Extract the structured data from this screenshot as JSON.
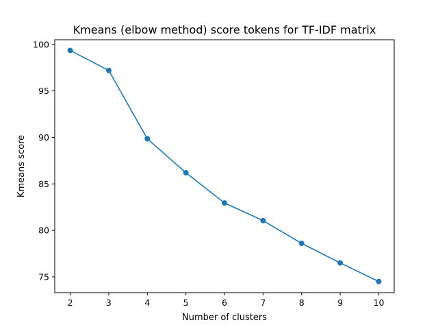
{
  "chart_data": {
    "type": "line",
    "title": "Kmeans (elbow method) score tokens for TF-IDF matrix",
    "xlabel": "Number of clusters",
    "ylabel": "Kmeans score",
    "x": [
      2,
      3,
      4,
      5,
      6,
      7,
      8,
      9,
      10
    ],
    "series": [
      {
        "values": [
          99.35,
          97.2,
          89.85,
          86.2,
          82.95,
          81.05,
          78.6,
          76.5,
          74.5
        ],
        "color": "#1f77b4",
        "marker": "circle"
      }
    ],
    "xlim": [
      1.6,
      10.4
    ],
    "ylim": [
      73.3,
      100.5
    ],
    "xticks": [
      2,
      3,
      4,
      5,
      6,
      7,
      8,
      9,
      10
    ],
    "yticks": [
      75,
      80,
      85,
      90,
      95,
      100
    ],
    "grid": false,
    "legend": "none"
  }
}
